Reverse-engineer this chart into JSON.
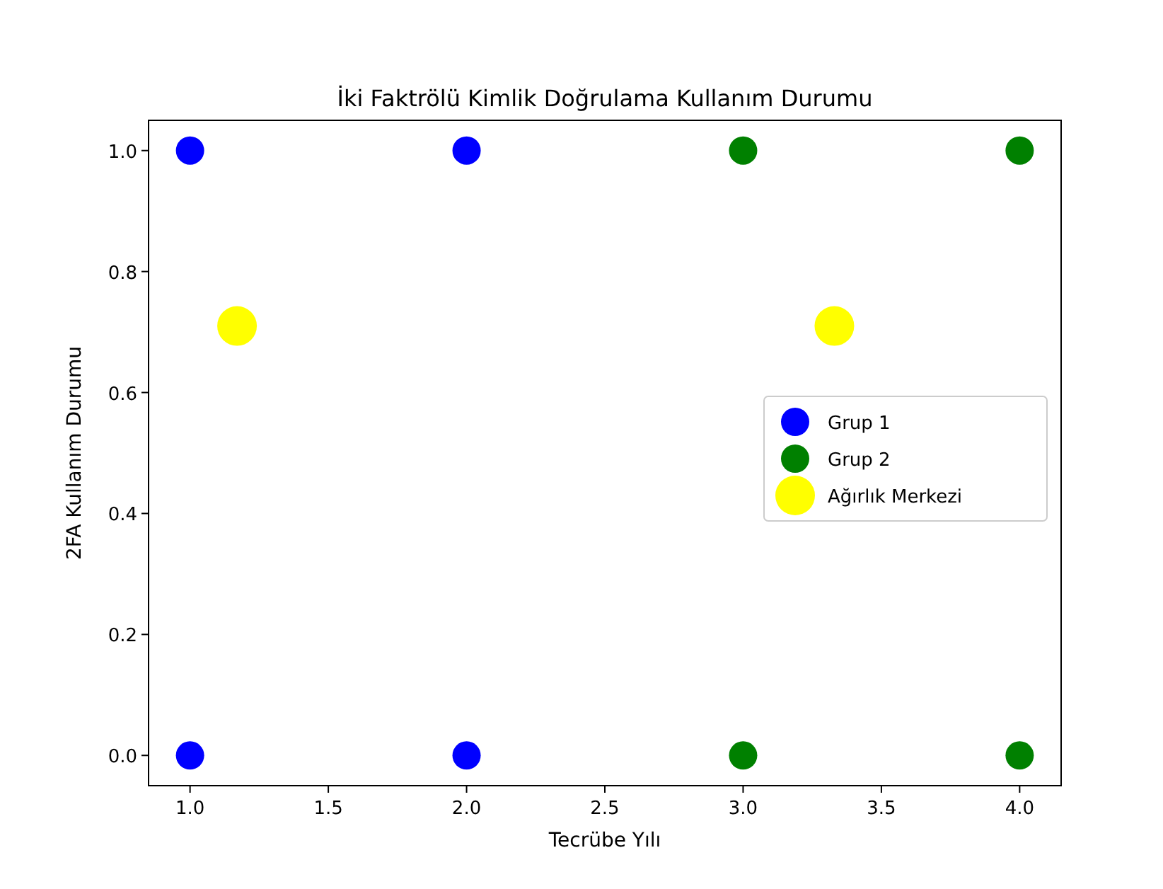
{
  "chart_data": {
    "type": "scatter",
    "title": "İki Faktrölü Kimlik Doğrulama Kullanım Durumu",
    "xlabel": "Tecrübe Yılı",
    "ylabel": "2FA Kullanım Durumu",
    "xlim": [
      0.85,
      4.15
    ],
    "ylim": [
      -0.05,
      1.05
    ],
    "xticks": [
      {
        "value": 1,
        "label": "1.0"
      },
      {
        "value": 1.5,
        "label": "1.5"
      },
      {
        "value": 2,
        "label": "2.0"
      },
      {
        "value": 2.5,
        "label": "2.5"
      },
      {
        "value": 3,
        "label": "3.0"
      },
      {
        "value": 3.5,
        "label": "3.5"
      },
      {
        "value": 4,
        "label": "4.0"
      }
    ],
    "yticks": [
      {
        "value": 0,
        "label": "0.0"
      },
      {
        "value": 0.2,
        "label": "0.2"
      },
      {
        "value": 0.4,
        "label": "0.4"
      },
      {
        "value": 0.6,
        "label": "0.6"
      },
      {
        "value": 0.8,
        "label": "0.8"
      },
      {
        "value": 1,
        "label": "1.0"
      }
    ],
    "marker": "circle",
    "legend": "right",
    "grid": false,
    "series": [
      {
        "name": "Grup 1",
        "color": "#0000ff",
        "x": [
          1,
          1,
          2,
          2
        ],
        "values": [
          1,
          0,
          1,
          0
        ]
      },
      {
        "name": "Grup 2",
        "color": "#008000",
        "x": [
          3,
          3,
          4,
          4
        ],
        "values": [
          1,
          0,
          1,
          0
        ]
      },
      {
        "name": "Ağırlık Merkezi",
        "color": "#ffff00",
        "x": [
          1.17,
          3.33
        ],
        "values": [
          0.71,
          0.71
        ]
      }
    ]
  }
}
